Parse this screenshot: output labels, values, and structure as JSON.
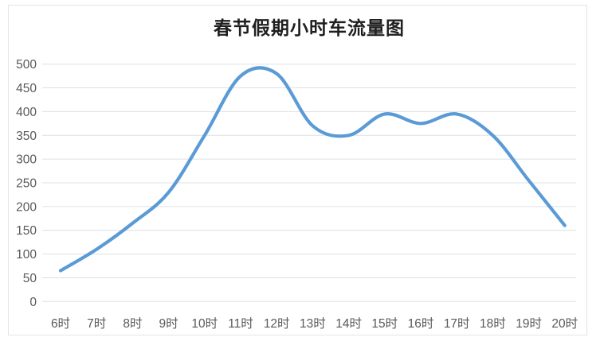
{
  "chart": {
    "title": "春节假期小时车流量图"
  },
  "chart_data": {
    "type": "line",
    "title": "春节假期小时车流量图",
    "categories": [
      "6时",
      "7时",
      "8时",
      "9时",
      "10时",
      "11时",
      "12时",
      "13时",
      "14时",
      "15时",
      "16时",
      "17时",
      "18时",
      "19时",
      "20时"
    ],
    "values": [
      65,
      110,
      165,
      230,
      350,
      475,
      480,
      370,
      350,
      395,
      375,
      395,
      350,
      255,
      160
    ],
    "xlabel": "",
    "ylabel": "",
    "ylim": [
      0,
      500
    ],
    "ytick_interval": 50,
    "yticks": [
      0,
      50,
      100,
      150,
      200,
      250,
      300,
      350,
      400,
      450,
      500
    ],
    "grid": true,
    "legend_position": "none",
    "smooth": true,
    "line_color": "#5B9BD5",
    "grid_color": "#dce1e6",
    "axis_label_color": "#595959",
    "title_color": "#1f1f1f"
  }
}
